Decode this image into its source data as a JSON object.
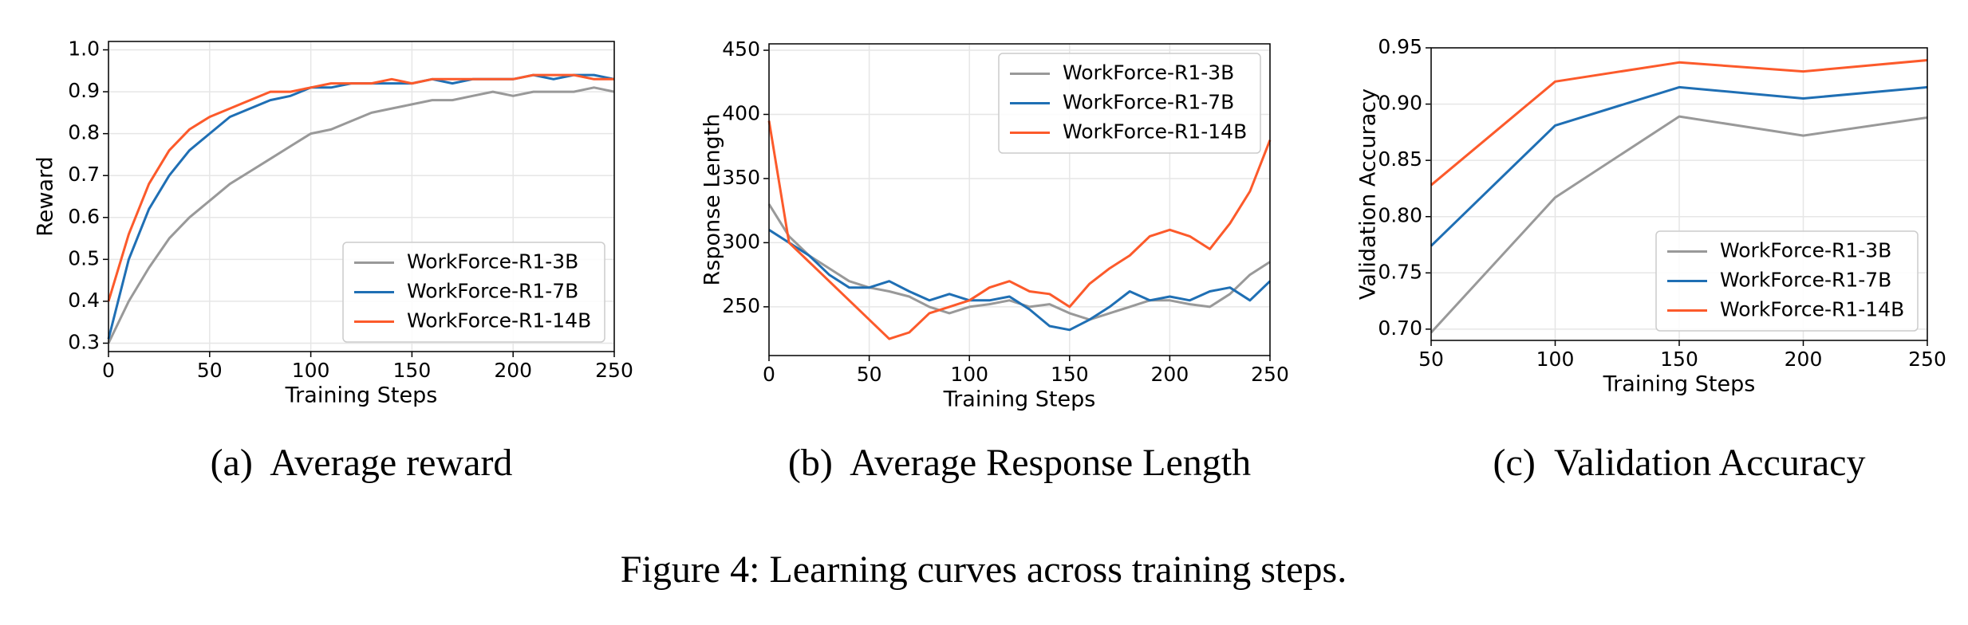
{
  "caption": "Figure 4: Learning curves across training steps.",
  "chart_data": [
    {
      "type": "line",
      "caption": "(a)  Average reward",
      "xlabel": "Training Steps",
      "ylabel": "Reward",
      "x": [
        0,
        10,
        20,
        30,
        40,
        50,
        60,
        70,
        80,
        90,
        100,
        110,
        120,
        130,
        140,
        150,
        160,
        170,
        180,
        190,
        200,
        210,
        220,
        230,
        240,
        250
      ],
      "xlim": [
        0,
        250
      ],
      "ylim": [
        0.28,
        1.02
      ],
      "xticks": [
        0,
        50,
        100,
        150,
        200,
        250
      ],
      "yticks": [
        0.3,
        0.4,
        0.5,
        0.6,
        0.7,
        0.8,
        0.9,
        {
          "value": 1,
          "label": "1.0"
        }
      ],
      "grid": true,
      "legend": "lower right",
      "series": [
        {
          "name": "WorkForce-R1-3B",
          "color": "#999999",
          "values": [
            0.3,
            0.4,
            0.48,
            0.55,
            0.6,
            0.64,
            0.68,
            0.71,
            0.74,
            0.77,
            0.8,
            0.81,
            0.83,
            0.85,
            0.86,
            0.87,
            0.88,
            0.88,
            0.89,
            0.9,
            0.89,
            0.9,
            0.9,
            0.9,
            0.91,
            0.9
          ]
        },
        {
          "name": "WorkForce-R1-7B",
          "color": "#1f6fb4",
          "values": [
            0.31,
            0.5,
            0.62,
            0.7,
            0.76,
            0.8,
            0.84,
            0.86,
            0.88,
            0.89,
            0.91,
            0.91,
            0.92,
            0.92,
            0.92,
            0.92,
            0.93,
            0.92,
            0.93,
            0.93,
            0.93,
            0.94,
            0.93,
            0.94,
            0.94,
            0.93
          ]
        },
        {
          "name": "WorkForce-R1-14B",
          "color": "#fc5a2b",
          "values": [
            0.4,
            0.56,
            0.68,
            0.76,
            0.81,
            0.84,
            0.86,
            0.88,
            0.9,
            0.9,
            0.91,
            0.92,
            0.92,
            0.92,
            0.93,
            0.92,
            0.93,
            0.93,
            0.93,
            0.93,
            0.93,
            0.94,
            0.94,
            0.94,
            0.93,
            0.93
          ]
        }
      ]
    },
    {
      "type": "line",
      "caption": "(b)  Average Response Length",
      "xlabel": "Training Steps",
      "ylabel": "Rsponse Length",
      "x": [
        0,
        10,
        20,
        30,
        40,
        50,
        60,
        70,
        80,
        90,
        100,
        110,
        120,
        130,
        140,
        150,
        160,
        170,
        180,
        190,
        200,
        210,
        220,
        230,
        240,
        250
      ],
      "xlim": [
        0,
        250
      ],
      "ylim": [
        212,
        455
      ],
      "xticks": [
        0,
        50,
        100,
        150,
        200,
        250
      ],
      "yticks": [
        250,
        300,
        350,
        400,
        450
      ],
      "grid": true,
      "legend": "upper right",
      "series": [
        {
          "name": "WorkForce-R1-3B",
          "color": "#999999",
          "values": [
            330,
            305,
            290,
            280,
            270,
            265,
            262,
            258,
            250,
            245,
            250,
            252,
            255,
            250,
            252,
            245,
            240,
            245,
            250,
            255,
            255,
            252,
            250,
            260,
            275,
            285
          ]
        },
        {
          "name": "WorkForce-R1-7B",
          "color": "#1f6fb4",
          "values": [
            310,
            300,
            290,
            275,
            265,
            265,
            270,
            262,
            255,
            260,
            255,
            255,
            258,
            248,
            235,
            232,
            240,
            250,
            262,
            255,
            258,
            255,
            262,
            265,
            255,
            270
          ]
        },
        {
          "name": "WorkForce-R1-14B",
          "color": "#fc5a2b",
          "values": [
            395,
            300,
            285,
            270,
            255,
            240,
            225,
            230,
            245,
            250,
            255,
            265,
            270,
            262,
            260,
            250,
            268,
            280,
            290,
            305,
            310,
            305,
            295,
            315,
            340,
            380
          ]
        }
      ]
    },
    {
      "type": "line",
      "caption": "(c)  Validation Accuracy",
      "xlabel": "Training Steps",
      "ylabel": "Validation Accuracy",
      "x": [
        50,
        100,
        150,
        200,
        250
      ],
      "xlim": [
        50,
        250
      ],
      "ylim": [
        0.69,
        0.95
      ],
      "xticks": [
        50,
        100,
        150,
        200,
        250
      ],
      "yticks": [
        {
          "value": 0.7,
          "label": "0.70"
        },
        0.75,
        {
          "value": 0.8,
          "label": "0.80"
        },
        0.85,
        {
          "value": 0.9,
          "label": "0.90"
        },
        0.95
      ],
      "grid": true,
      "legend": "lower right",
      "series": [
        {
          "name": "WorkForce-R1-3B",
          "color": "#999999",
          "values": [
            0.697,
            0.817,
            0.889,
            0.872,
            0.888
          ]
        },
        {
          "name": "WorkForce-R1-7B",
          "color": "#1f6fb4",
          "values": [
            0.774,
            0.881,
            0.915,
            0.905,
            0.915
          ]
        },
        {
          "name": "WorkForce-R1-14B",
          "color": "#fc5a2b",
          "values": [
            0.828,
            0.92,
            0.937,
            0.929,
            0.939
          ]
        }
      ]
    }
  ]
}
